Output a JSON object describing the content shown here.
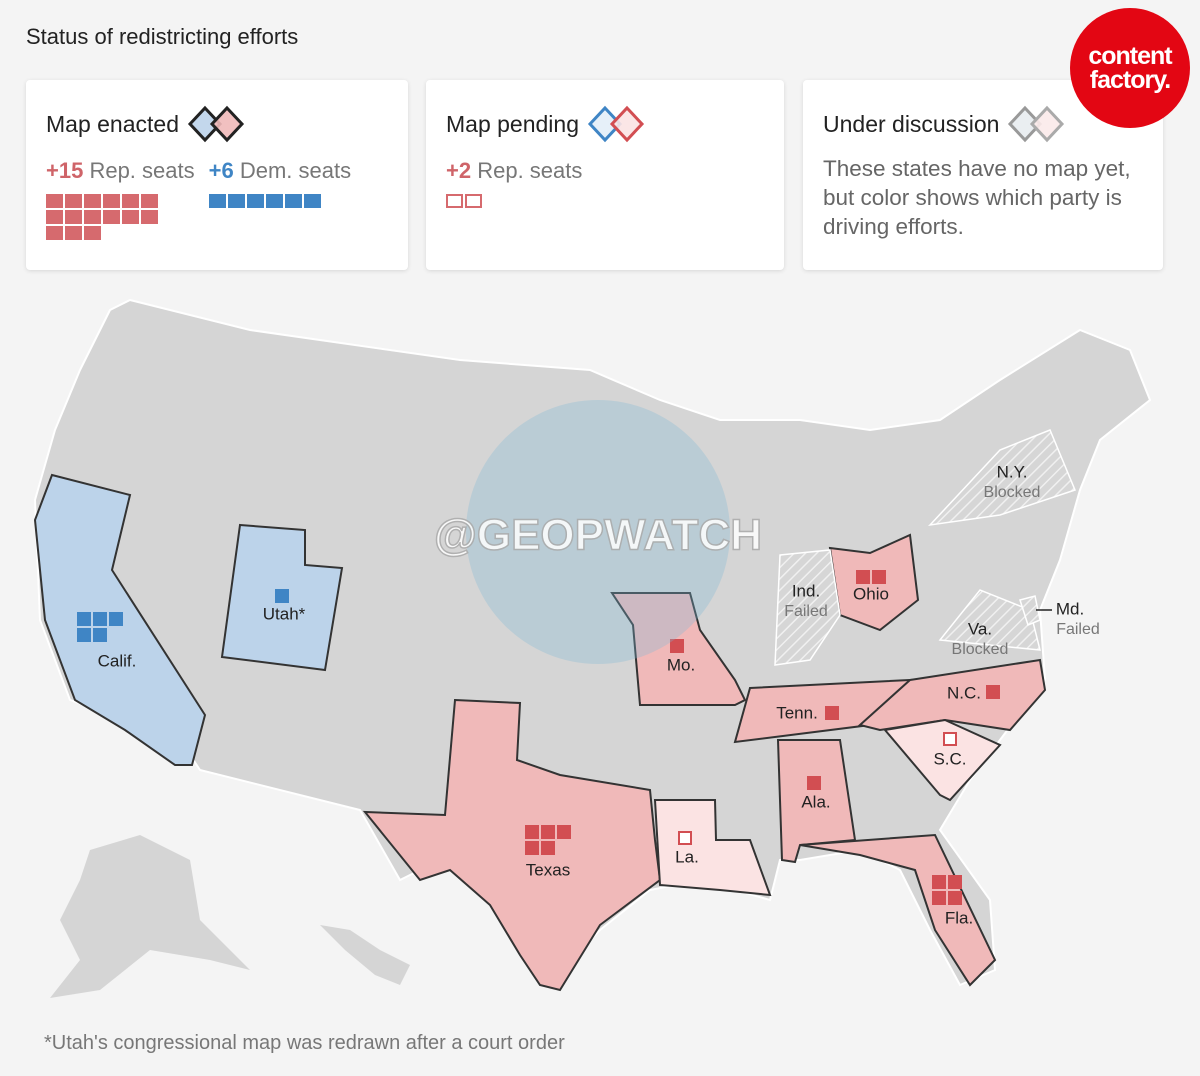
{
  "title": "Status of redistricting efforts",
  "logo": [
    "content",
    "factory."
  ],
  "watermark": "@GEOPWATCH",
  "legend": [
    {
      "title": "Map enacted",
      "status": "enacted",
      "items": [
        {
          "value": "+15",
          "label": "Rep. seats",
          "party": "rep"
        },
        {
          "value": "+6",
          "label": "Dem. seats",
          "party": "dem"
        }
      ]
    },
    {
      "title": "Map pending",
      "status": "pending",
      "items": [
        {
          "value": "+2",
          "label": "Rep. seats",
          "party": "rep"
        }
      ]
    },
    {
      "title": "Under discussion",
      "status": "discussion",
      "text": "These states have no map yet, but color shows which party is driving efforts."
    }
  ],
  "states": [
    {
      "label": "Calif.",
      "status": "enacted",
      "party": "dem",
      "seats": 5
    },
    {
      "label": "Utah*",
      "status": "enacted",
      "party": "dem",
      "seats": 1
    },
    {
      "label": "Texas",
      "status": "enacted",
      "party": "rep",
      "seats": 5
    },
    {
      "label": "La.",
      "status": "pending",
      "party": "rep",
      "seats": 1
    },
    {
      "label": "Mo.",
      "status": "enacted",
      "party": "rep",
      "seats": 1
    },
    {
      "label": "Ohio",
      "status": "enacted",
      "party": "rep",
      "seats": 2
    },
    {
      "label": "Tenn.",
      "status": "enacted",
      "party": "rep",
      "seats": 1
    },
    {
      "label": "N.C.",
      "status": "enacted",
      "party": "rep",
      "seats": 1
    },
    {
      "label": "S.C.",
      "status": "pending",
      "party": "rep",
      "seats": 1
    },
    {
      "label": "Ala.",
      "status": "enacted",
      "party": "rep",
      "seats": 1
    },
    {
      "label": "Fla.",
      "status": "enacted",
      "party": "rep",
      "seats": 4
    },
    {
      "label": "Ind.",
      "status": "Failed"
    },
    {
      "label": "N.Y.",
      "status": "Blocked"
    },
    {
      "label": "Va.",
      "status": "Blocked"
    },
    {
      "label": "Md.",
      "status": "Failed"
    }
  ],
  "note": "*Utah's congressional map was redrawn after a court order"
}
